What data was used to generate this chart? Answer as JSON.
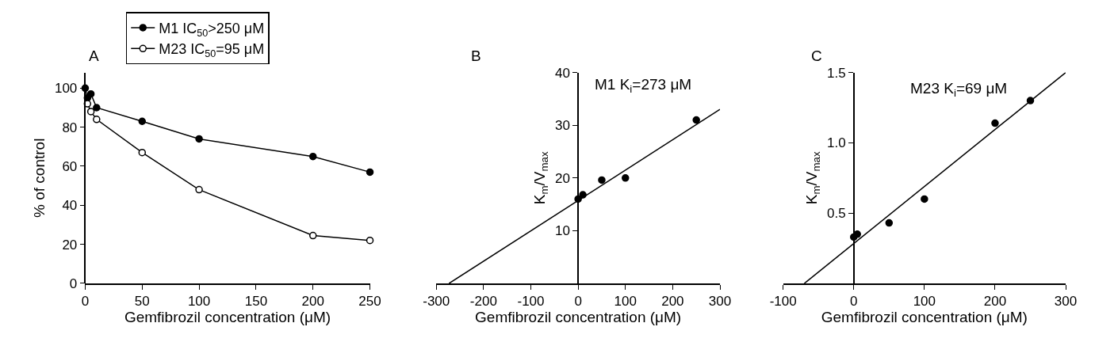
{
  "chart_data": [
    {
      "type": "line",
      "title": "A",
      "xlabel": "Gemfibrozil concentration (μM)",
      "ylabel": "% of control",
      "xlim": [
        0,
        250
      ],
      "xticks": [
        0,
        50,
        100,
        150,
        200,
        250
      ],
      "ylim": [
        0,
        108
      ],
      "yticks": [
        0,
        20,
        40,
        60,
        80,
        100
      ],
      "marker": "circle",
      "legend": "top",
      "series": [
        {
          "name": "M1 IC$_{50}$>250 μM",
          "color": "#000000",
          "x": [
            0,
            2,
            5,
            10,
            50,
            100,
            200,
            250
          ],
          "values": [
            100,
            95,
            97,
            90,
            83,
            74,
            65,
            57
          ]
        },
        {
          "name": "M23 IC$_{50}$=95 μM",
          "color": "#ffffff",
          "x": [
            2,
            5,
            10,
            50,
            100,
            200,
            250
          ],
          "values": [
            92,
            88,
            84,
            67,
            48,
            24.5,
            22
          ]
        }
      ]
    },
    {
      "type": "scatter",
      "title": "B",
      "xlabel": "Gemfibrozil concentration (μM)",
      "ylabel": "K$_{m}$/V$_{max}$",
      "xlim": [
        -300,
        300
      ],
      "xticks": [
        -300,
        -200,
        -100,
        0,
        100,
        200,
        300
      ],
      "ylim": [
        0,
        40
      ],
      "yticks": [
        10,
        20,
        30,
        40
      ],
      "marker": "circle",
      "annotations": [
        "M1 K$_{i}$=273 μM"
      ],
      "series": [
        {
          "color": "#000000",
          "x": [
            0,
            10,
            50,
            100,
            250
          ],
          "values": [
            16,
            16.8,
            19.6,
            20,
            31
          ]
        },
        {
          "type": "line",
          "marker": "none",
          "color": "#000000",
          "x": [
            -273,
            300
          ],
          "values": [
            0,
            33
          ]
        }
      ]
    },
    {
      "type": "scatter",
      "title": "C",
      "xlabel": "Gemfibrozil concentration (μM)",
      "ylabel": "K$_{m}$/V$_{max}$",
      "xlim": [
        -100,
        300
      ],
      "xticks": [
        -100,
        0,
        100,
        200,
        300
      ],
      "ylim": [
        0,
        1.5
      ],
      "yticks": [
        {
          "value": 0.5,
          "label": "0.5"
        },
        {
          "value": 1.0,
          "label": "1.0"
        },
        {
          "value": 1.5,
          "label": "1.5"
        }
      ],
      "marker": "circle",
      "annotations": [
        "M23 K$_{i}$=69 μM"
      ],
      "series": [
        {
          "color": "#000000",
          "x": [
            0,
            5,
            50,
            100,
            200,
            250
          ],
          "values": [
            0.33,
            0.35,
            0.43,
            0.6,
            1.14,
            1.3
          ]
        },
        {
          "type": "line",
          "marker": "none",
          "color": "#000000",
          "x": [
            -70,
            300
          ],
          "values": [
            0,
            1.5
          ]
        }
      ]
    }
  ]
}
